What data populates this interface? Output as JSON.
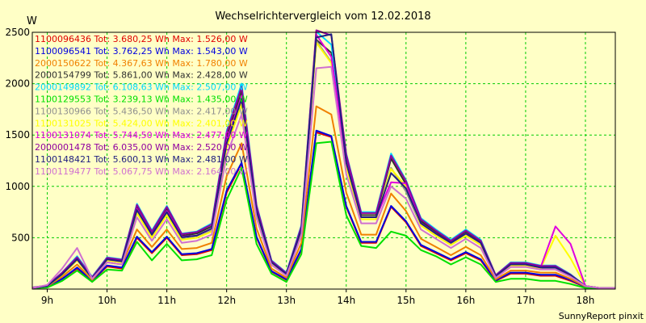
{
  "chart_data": {
    "type": "line",
    "title": "Wechselrichtervergleich vom 12.02.2018",
    "ylabel": "W",
    "xlabel": "",
    "ylim": [
      0,
      2500
    ],
    "y_ticks": [
      "500",
      "1000",
      "1500",
      "2000",
      "2500"
    ],
    "x_ticks": [
      "9h",
      "10h",
      "11h",
      "12h",
      "13h",
      "14h",
      "15h",
      "16h",
      "17h",
      "18h"
    ],
    "grid": true,
    "legend_position": "top-left",
    "background_color": "#FFFFC6",
    "grid_color": "#00CC00",
    "footer": "SunnyReport pinxit",
    "x": [
      "08:45",
      "09:00",
      "09:15",
      "09:30",
      "09:45",
      "10:00",
      "10:15",
      "10:30",
      "10:45",
      "11:00",
      "11:15",
      "11:30",
      "11:45",
      "12:00",
      "12:15",
      "12:30",
      "12:45",
      "13:00",
      "13:15",
      "13:30",
      "13:45",
      "14:00",
      "14:15",
      "14:30",
      "14:45",
      "15:00",
      "15:15",
      "15:30",
      "15:45",
      "16:00",
      "16:15",
      "16:30",
      "16:45",
      "17:00",
      "17:15",
      "17:30",
      "17:45",
      "18:00",
      "18:15",
      "18:30"
    ],
    "series": [
      {
        "legend": "1100096436 Tot: 3.680,25 Wh Max: 1.526,00 W",
        "color": "#E00000",
        "values": [
          10,
          20,
          100,
          200,
          80,
          220,
          200,
          500,
          350,
          500,
          330,
          340,
          380,
          940,
          1220,
          500,
          170,
          90,
          380,
          1526,
          1480,
          800,
          450,
          450,
          800,
          650,
          420,
          350,
          280,
          350,
          280,
          80,
          150,
          150,
          130,
          130,
          80,
          20,
          10,
          10
        ]
      },
      {
        "legend": "1100096541 Tot: 3.762,25 Wh Max: 1.543,00 W",
        "color": "#0000E0",
        "values": [
          10,
          20,
          100,
          210,
          80,
          230,
          210,
          510,
          360,
          510,
          340,
          350,
          390,
          960,
          1230,
          510,
          175,
          95,
          390,
          1543,
          1490,
          810,
          460,
          460,
          810,
          660,
          430,
          360,
          290,
          360,
          290,
          85,
          160,
          160,
          140,
          140,
          90,
          20,
          10,
          10
        ]
      },
      {
        "legend": "2000150622 Tot: 4.367,63 Wh Max: 1.780,00 W",
        "color": "#F08000",
        "values": [
          10,
          25,
          120,
          240,
          90,
          260,
          240,
          580,
          410,
          580,
          390,
          400,
          450,
          1100,
          1420,
          590,
          200,
          110,
          450,
          1780,
          1700,
          940,
          530,
          530,
          930,
          760,
          490,
          410,
          330,
          410,
          330,
          95,
          180,
          180,
          160,
          160,
          100,
          25,
          10,
          10
        ]
      },
      {
        "legend": "2000154799 Tot: 5.861,00 Wh Max: 2.428,00 W",
        "color": "#303030",
        "values": [
          10,
          30,
          150,
          300,
          110,
          300,
          280,
          800,
          550,
          780,
          520,
          540,
          610,
          1480,
          1930,
          790,
          270,
          150,
          600,
          2428,
          2300,
          1270,
          720,
          720,
          1270,
          1020,
          660,
          560,
          460,
          560,
          460,
          130,
          250,
          250,
          220,
          220,
          140,
          30,
          10,
          10
        ]
      },
      {
        "legend": "2000149892 Tot: 6.108,63 Wh Max: 2.507,00 W",
        "color": "#00D8FF",
        "values": [
          15,
          35,
          160,
          320,
          120,
          310,
          290,
          830,
          570,
          810,
          540,
          560,
          640,
          1540,
          2000,
          820,
          280,
          160,
          620,
          2507,
          2380,
          1320,
          750,
          750,
          1320,
          1060,
          690,
          580,
          480,
          580,
          480,
          135,
          260,
          260,
          230,
          230,
          145,
          30,
          10,
          10
        ]
      },
      {
        "legend": "1100129553 Tot: 3.239,13 Wh Max: 1.435,00 W",
        "color": "#00E000",
        "values": [
          10,
          15,
          80,
          180,
          70,
          190,
          180,
          460,
          280,
          440,
          280,
          290,
          330,
          870,
          1180,
          440,
          150,
          70,
          340,
          1420,
          1435,
          720,
          420,
          400,
          560,
          520,
          380,
          320,
          240,
          310,
          240,
          70,
          100,
          100,
          80,
          80,
          50,
          10,
          10,
          10
        ]
      },
      {
        "legend": "1100130966 Tot: 5.436,50 Wh Max: 2.417,00 W",
        "color": "#909090",
        "values": [
          10,
          30,
          140,
          280,
          100,
          280,
          260,
          750,
          510,
          730,
          490,
          500,
          570,
          1390,
          1810,
          740,
          250,
          140,
          560,
          2417,
          2210,
          1200,
          680,
          680,
          1180,
          950,
          620,
          520,
          430,
          520,
          430,
          120,
          230,
          230,
          200,
          200,
          130,
          30,
          10,
          10
        ]
      },
      {
        "legend": "1100131025 Tot: 5.424,00 Wh Max: 2.401,00 W",
        "color": "#FFFF00",
        "values": [
          10,
          30,
          140,
          280,
          100,
          280,
          260,
          740,
          500,
          720,
          480,
          500,
          560,
          1380,
          1800,
          730,
          250,
          140,
          560,
          2401,
          2200,
          1190,
          680,
          680,
          1170,
          1000,
          620,
          520,
          430,
          520,
          430,
          120,
          230,
          230,
          200,
          520,
          300,
          30,
          10,
          10
        ]
      },
      {
        "legend": "1100131074 Tot: 5.744,50 Wh Max: 2.477,00 W",
        "color": "#E000E0",
        "values": [
          10,
          30,
          150,
          290,
          110,
          290,
          270,
          780,
          530,
          760,
          510,
          520,
          590,
          1440,
          1880,
          770,
          260,
          145,
          580,
          2477,
          2260,
          1240,
          700,
          700,
          1040,
          1030,
          640,
          540,
          450,
          540,
          450,
          125,
          240,
          240,
          210,
          610,
          440,
          30,
          10,
          10
        ]
      },
      {
        "legend": "2000001478 Tot: 6.035,00 Wh Max: 2.520,00 W",
        "color": "#9000A0",
        "values": [
          15,
          35,
          160,
          310,
          115,
          305,
          285,
          820,
          560,
          800,
          535,
          555,
          630,
          1520,
          1970,
          810,
          275,
          155,
          610,
          2520,
          2470,
          1310,
          740,
          740,
          1300,
          1050,
          680,
          570,
          470,
          570,
          470,
          135,
          255,
          255,
          225,
          225,
          140,
          30,
          10,
          10
        ]
      },
      {
        "legend": "1100148421 Tot: 5.600,13 Wh Max: 2.481,00 W",
        "color": "#202080",
        "values": [
          10,
          30,
          145,
          290,
          105,
          290,
          270,
          770,
          530,
          750,
          505,
          520,
          590,
          1420,
          1850,
          760,
          260,
          145,
          580,
          2450,
          2481,
          1230,
          700,
          700,
          1130,
          980,
          640,
          540,
          450,
          540,
          450,
          125,
          240,
          240,
          210,
          210,
          135,
          30,
          10,
          10
        ]
      },
      {
        "legend": "1100119477 Tot: 5.067,75 Wh Max: 2.164,00 W",
        "color": "#D070D0",
        "values": [
          10,
          40,
          200,
          400,
          100,
          260,
          240,
          700,
          470,
          680,
          450,
          470,
          530,
          1300,
          1700,
          690,
          235,
          130,
          520,
          2150,
          2164,
          1120,
          640,
          640,
          1000,
          880,
          580,
          490,
          400,
          490,
          400,
          110,
          215,
          215,
          190,
          190,
          120,
          30,
          10,
          10
        ]
      }
    ]
  }
}
